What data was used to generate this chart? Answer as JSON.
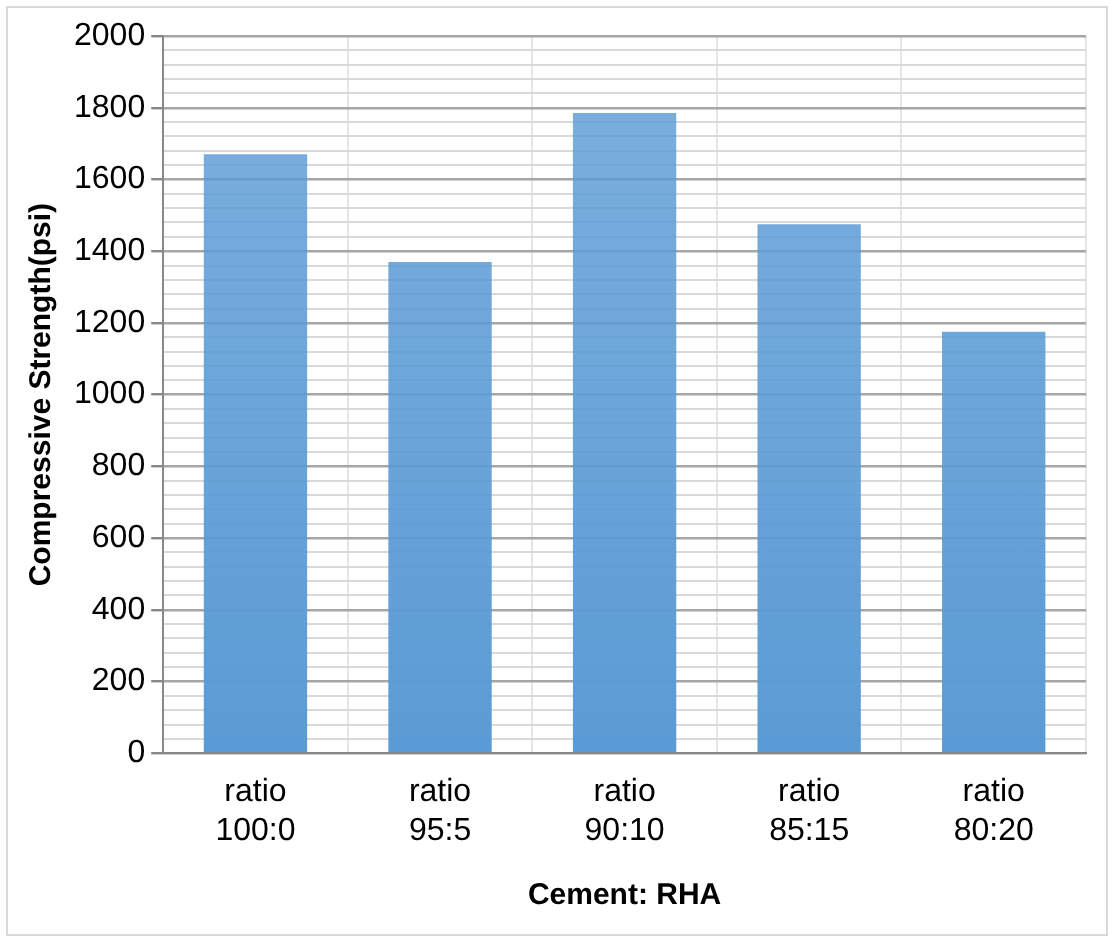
{
  "chart_data": {
    "type": "bar",
    "categories": [
      "ratio\n100:0",
      "ratio\n95:5",
      "ratio\n90:10",
      "ratio\n85:15",
      "ratio\n80:20"
    ],
    "values": [
      1670,
      1370,
      1785,
      1475,
      1175
    ],
    "color": "#5b9bd5",
    "xlabel": "Cement: RHA",
    "ylabel": "Compressive Strength(psi)",
    "ylim": [
      0,
      2000
    ],
    "yticks": [
      0,
      {
        "value": 40,
        "label": null
      },
      {
        "value": 80,
        "label": null
      },
      {
        "value": 120,
        "label": null
      },
      {
        "value": 160,
        "label": null
      },
      200,
      {
        "value": 240,
        "label": null
      },
      {
        "value": 280,
        "label": null
      },
      {
        "value": 320,
        "label": null
      },
      {
        "value": 360,
        "label": null
      },
      400,
      {
        "value": 440,
        "label": null
      },
      {
        "value": 480,
        "label": null
      },
      {
        "value": 520,
        "label": null
      },
      {
        "value": 560,
        "label": null
      },
      600,
      {
        "value": 640,
        "label": null
      },
      {
        "value": 680,
        "label": null
      },
      {
        "value": 720,
        "label": null
      },
      {
        "value": 760,
        "label": null
      },
      800,
      {
        "value": 840,
        "label": null
      },
      {
        "value": 880,
        "label": null
      },
      {
        "value": 920,
        "label": null
      },
      {
        "value": 960,
        "label": null
      },
      1000,
      {
        "value": 1040,
        "label": null
      },
      {
        "value": 1080,
        "label": null
      },
      {
        "value": 1120,
        "label": null
      },
      {
        "value": 1160,
        "label": null
      },
      1200,
      {
        "value": 1240,
        "label": null
      },
      {
        "value": 1280,
        "label": null
      },
      {
        "value": 1320,
        "label": null
      },
      {
        "value": 1360,
        "label": null
      },
      1400,
      {
        "value": 1440,
        "label": null
      },
      {
        "value": 1480,
        "label": null
      },
      {
        "value": 1520,
        "label": null
      },
      {
        "value": 1560,
        "label": null
      },
      1600,
      {
        "value": 1640,
        "label": null
      },
      {
        "value": 1680,
        "label": null
      },
      {
        "value": 1720,
        "label": null
      },
      {
        "value": 1760,
        "label": null
      },
      1800,
      {
        "value": 1840,
        "label": null
      },
      {
        "value": 1880,
        "label": null
      },
      {
        "value": 1920,
        "label": null
      },
      {
        "value": 1960,
        "label": null
      },
      2000
    ],
    "grid": true,
    "legend": false
  }
}
